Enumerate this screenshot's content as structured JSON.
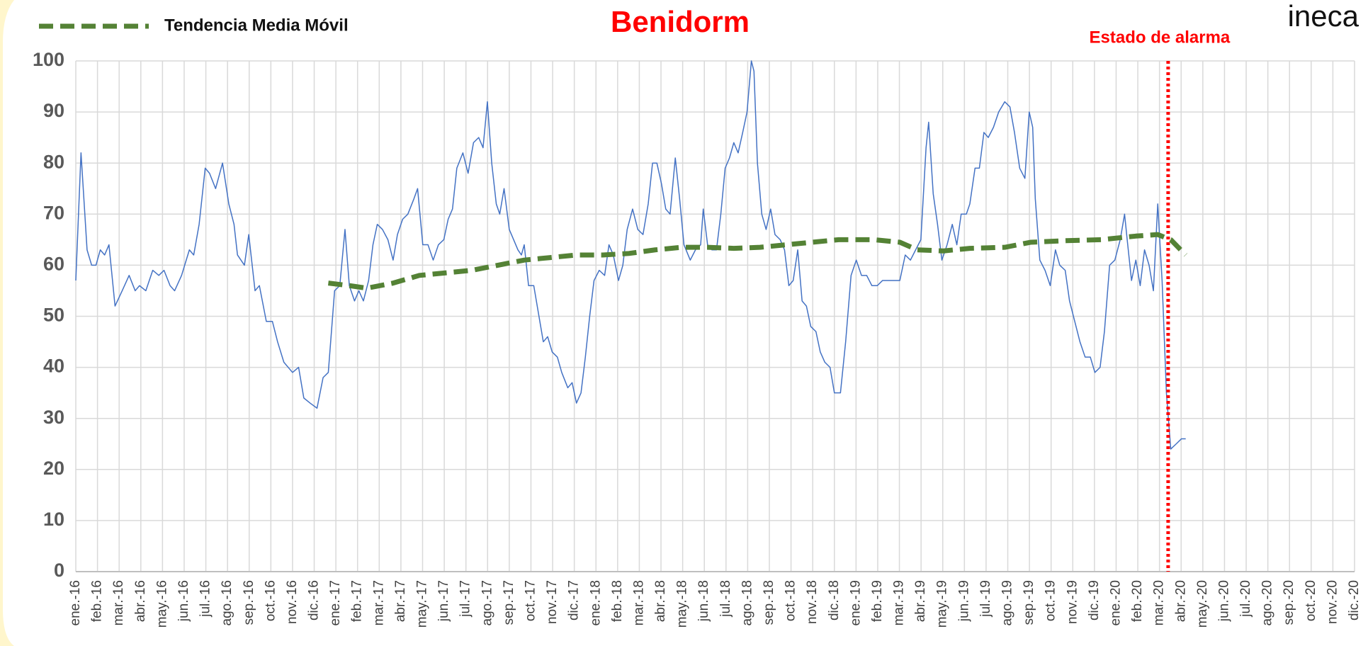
{
  "chart_data": {
    "type": "line",
    "title": "Benidorm",
    "logo": "ineca",
    "annotation": {
      "text": "Estado de alarma",
      "x": 50.4,
      "color": "#ff0000"
    },
    "xlim": [
      0,
      59
    ],
    "ylim": [
      0,
      100
    ],
    "yticks": [
      0,
      10,
      20,
      30,
      40,
      50,
      60,
      70,
      80,
      90,
      100
    ],
    "xticks": [
      {
        "value": 0,
        "label": "ene.-16"
      },
      {
        "value": 1,
        "label": "feb.-16"
      },
      {
        "value": 2,
        "label": "mar.-16"
      },
      {
        "value": 3,
        "label": "abr.-16"
      },
      {
        "value": 4,
        "label": "may.-16"
      },
      {
        "value": 5,
        "label": "jun.-16"
      },
      {
        "value": 6,
        "label": "jul.-16"
      },
      {
        "value": 7,
        "label": "ago.-16"
      },
      {
        "value": 8,
        "label": "sep.-16"
      },
      {
        "value": 9,
        "label": "oct.-16"
      },
      {
        "value": 10,
        "label": "nov.-16"
      },
      {
        "value": 11,
        "label": "dic.-16"
      },
      {
        "value": 12,
        "label": "ene.-17"
      },
      {
        "value": 13,
        "label": "feb.-17"
      },
      {
        "value": 14,
        "label": "mar.-17"
      },
      {
        "value": 15,
        "label": "abr.-17"
      },
      {
        "value": 16,
        "label": "may.-17"
      },
      {
        "value": 17,
        "label": "jun.-17"
      },
      {
        "value": 18,
        "label": "jul.-17"
      },
      {
        "value": 19,
        "label": "ago.-17"
      },
      {
        "value": 20,
        "label": "sep.-17"
      },
      {
        "value": 21,
        "label": "oct.-17"
      },
      {
        "value": 22,
        "label": "nov.-17"
      },
      {
        "value": 23,
        "label": "dic.-17"
      },
      {
        "value": 24,
        "label": "ene.-18"
      },
      {
        "value": 25,
        "label": "feb.-18"
      },
      {
        "value": 26,
        "label": "mar.-18"
      },
      {
        "value": 27,
        "label": "abr.-18"
      },
      {
        "value": 28,
        "label": "may.-18"
      },
      {
        "value": 29,
        "label": "jun.-18"
      },
      {
        "value": 30,
        "label": "jul.-18"
      },
      {
        "value": 31,
        "label": "ago.-18"
      },
      {
        "value": 32,
        "label": "sep.-18"
      },
      {
        "value": 33,
        "label": "oct.-18"
      },
      {
        "value": 34,
        "label": "nov.-18"
      },
      {
        "value": 35,
        "label": "dic.-18"
      },
      {
        "value": 36,
        "label": "ene.-19"
      },
      {
        "value": 37,
        "label": "feb.-19"
      },
      {
        "value": 38,
        "label": "mar.-19"
      },
      {
        "value": 39,
        "label": "abr.-19"
      },
      {
        "value": 40,
        "label": "may.-19"
      },
      {
        "value": 41,
        "label": "jun.-19"
      },
      {
        "value": 42,
        "label": "jul.-19"
      },
      {
        "value": 43,
        "label": "ago.-19"
      },
      {
        "value": 44,
        "label": "sep.-19"
      },
      {
        "value": 45,
        "label": "oct.-19"
      },
      {
        "value": 46,
        "label": "nov.-19"
      },
      {
        "value": 47,
        "label": "dic.-19"
      },
      {
        "value": 48,
        "label": "ene.-20"
      },
      {
        "value": 49,
        "label": "feb.-20"
      },
      {
        "value": 50,
        "label": "mar.-20"
      },
      {
        "value": 51,
        "label": "abr.-20"
      },
      {
        "value": 52,
        "label": "may.-20"
      },
      {
        "value": 53,
        "label": "jun.-20"
      },
      {
        "value": 54,
        "label": "jul.-20"
      },
      {
        "value": 55,
        "label": "ago.-20"
      },
      {
        "value": 56,
        "label": "sep.-20"
      },
      {
        "value": 57,
        "label": "oct.-20"
      },
      {
        "value": 58,
        "label": "nov.-20"
      },
      {
        "value": 59,
        "label": "dic.-20"
      }
    ],
    "grid": true,
    "series": [
      {
        "color": "#4472c4",
        "dash": false,
        "x": [
          0,
          0.24,
          0.52,
          0.73,
          0.93,
          1.13,
          1.33,
          1.53,
          1.81,
          2.14,
          2.46,
          2.74,
          2.94,
          3.23,
          3.55,
          3.83,
          4.07,
          4.35,
          4.56,
          4.88,
          5.24,
          5.44,
          5.69,
          5.97,
          6.17,
          6.45,
          6.77,
          7.06,
          7.3,
          7.46,
          7.78,
          7.98,
          8.27,
          8.47,
          8.79,
          9.07,
          9.31,
          9.6,
          10.0,
          10.28,
          10.52,
          10.81,
          11.13,
          11.41,
          11.65,
          11.94,
          12.18,
          12.42,
          12.62,
          12.86,
          13.06,
          13.27,
          13.51,
          13.71,
          13.91,
          14.15,
          14.4,
          14.64,
          14.84,
          15.08,
          15.32,
          15.6,
          15.77,
          16.01,
          16.25,
          16.49,
          16.73,
          16.98,
          17.18,
          17.38,
          17.58,
          17.86,
          18.1,
          18.35,
          18.59,
          18.79,
          18.99,
          19.19,
          19.4,
          19.56,
          19.76,
          20.0,
          20.2,
          20.4,
          20.56,
          20.69,
          20.89,
          21.13,
          21.37,
          21.57,
          21.77,
          21.98,
          22.22,
          22.42,
          22.7,
          22.9,
          23.1,
          23.31,
          23.51,
          23.71,
          23.91,
          24.15,
          24.4,
          24.6,
          24.8,
          25.04,
          25.24,
          25.44,
          25.69,
          25.93,
          26.17,
          26.41,
          26.61,
          26.81,
          27.02,
          27.22,
          27.42,
          27.66,
          27.86,
          28.06,
          28.35,
          28.59,
          28.83,
          28.95,
          29.15,
          29.35,
          29.56,
          29.76,
          29.96,
          30.16,
          30.36,
          30.56,
          30.77,
          30.97,
          31.17,
          31.29,
          31.45,
          31.65,
          31.85,
          32.06,
          32.26,
          32.5,
          32.7,
          32.9,
          33.1,
          33.31,
          33.51,
          33.71,
          33.91,
          34.15,
          34.35,
          34.56,
          34.8,
          35.0,
          35.28,
          35.52,
          35.77,
          36.01,
          36.25,
          36.49,
          36.73,
          36.98,
          37.22,
          37.46,
          37.7,
          38.02,
          38.27,
          38.51,
          38.75,
          38.99,
          39.23,
          39.35,
          39.56,
          39.76,
          39.96,
          40.2,
          40.44,
          40.65,
          40.85,
          41.09,
          41.25,
          41.49,
          41.69,
          41.9,
          42.1,
          42.34,
          42.58,
          42.86,
          43.1,
          43.31,
          43.55,
          43.79,
          43.99,
          44.15,
          44.27,
          44.48,
          44.72,
          44.96,
          45.2,
          45.4,
          45.65,
          45.85,
          46.09,
          46.33,
          46.57,
          46.81,
          47.02,
          47.26,
          47.46,
          47.7,
          47.94,
          48.19,
          48.39,
          48.51,
          48.71,
          48.91,
          49.11,
          49.31,
          49.52,
          49.72,
          49.92,
          50.12,
          50.32,
          50.52,
          50.77,
          51.01,
          51.21
        ],
        "values": [
          57,
          82,
          63,
          60,
          60,
          63,
          62,
          64,
          52,
          55,
          58,
          55,
          56,
          55,
          59,
          58,
          59,
          56,
          55,
          58,
          63,
          62,
          68,
          79,
          78,
          75,
          80,
          72,
          68,
          62,
          60,
          66,
          55,
          56,
          49,
          49,
          45,
          41,
          39,
          40,
          34,
          33,
          32,
          38,
          39,
          55,
          56,
          67,
          56,
          53,
          55,
          53,
          57,
          64,
          68,
          67,
          65,
          61,
          66,
          69,
          70,
          73,
          75,
          64,
          64,
          61,
          64,
          65,
          69,
          71,
          79,
          82,
          78,
          84,
          85,
          83,
          92,
          80,
          72,
          70,
          75,
          67,
          65,
          63,
          62,
          64,
          56,
          56,
          50,
          45,
          46,
          43,
          42,
          39,
          36,
          37,
          33,
          35,
          42,
          50,
          57,
          59,
          58,
          64,
          62,
          57,
          60,
          67,
          71,
          67,
          66,
          72,
          80,
          80,
          76,
          71,
          70,
          81,
          73,
          64,
          61,
          63,
          64,
          71,
          64,
          63,
          63,
          70,
          79,
          81,
          84,
          82,
          86,
          90,
          100,
          98,
          80,
          70,
          67,
          71,
          66,
          65,
          63,
          56,
          57,
          63,
          53,
          52,
          48,
          47,
          43,
          41,
          40,
          35,
          35,
          45,
          58,
          61,
          58,
          58,
          56,
          56,
          57,
          57,
          57,
          57,
          62,
          61,
          63,
          65,
          83,
          88,
          74,
          68,
          61,
          64,
          68,
          64,
          70,
          70,
          72,
          79,
          79,
          86,
          85,
          87,
          90,
          92,
          91,
          86,
          79,
          77,
          90,
          87,
          73,
          61,
          59,
          56,
          63,
          60,
          59,
          53,
          49,
          45,
          42,
          42,
          39,
          40,
          47,
          60,
          61,
          65,
          70,
          65,
          57,
          61,
          56,
          63,
          60,
          55,
          72,
          57,
          35,
          24,
          25,
          26,
          26
        ]
      },
      {
        "name": "Tendencia Media Móvil",
        "color": "#548235",
        "dash": true,
        "x": [
          11.65,
          12.62,
          13.43,
          14.64,
          15.85,
          17.06,
          18.27,
          19.48,
          20.69,
          21.9,
          23.1,
          24.31,
          25.52,
          26.73,
          27.94,
          29.15,
          30.36,
          31.57,
          32.78,
          33.99,
          35.2,
          36.81,
          38.02,
          38.83,
          40.04,
          41.25,
          42.86,
          44.07,
          45.69,
          47.3,
          48.91,
          49.92,
          50.52,
          51.21
        ],
        "values": [
          56.5,
          56,
          55.5,
          56.5,
          58,
          58.5,
          59,
          60,
          61,
          61.5,
          62,
          62,
          62.3,
          63,
          63.5,
          63.5,
          63.3,
          63.5,
          64,
          64.5,
          65,
          65,
          64.5,
          63,
          62.8,
          63.3,
          63.5,
          64.5,
          64.8,
          65,
          65.7,
          66,
          65,
          62
        ]
      }
    ]
  }
}
